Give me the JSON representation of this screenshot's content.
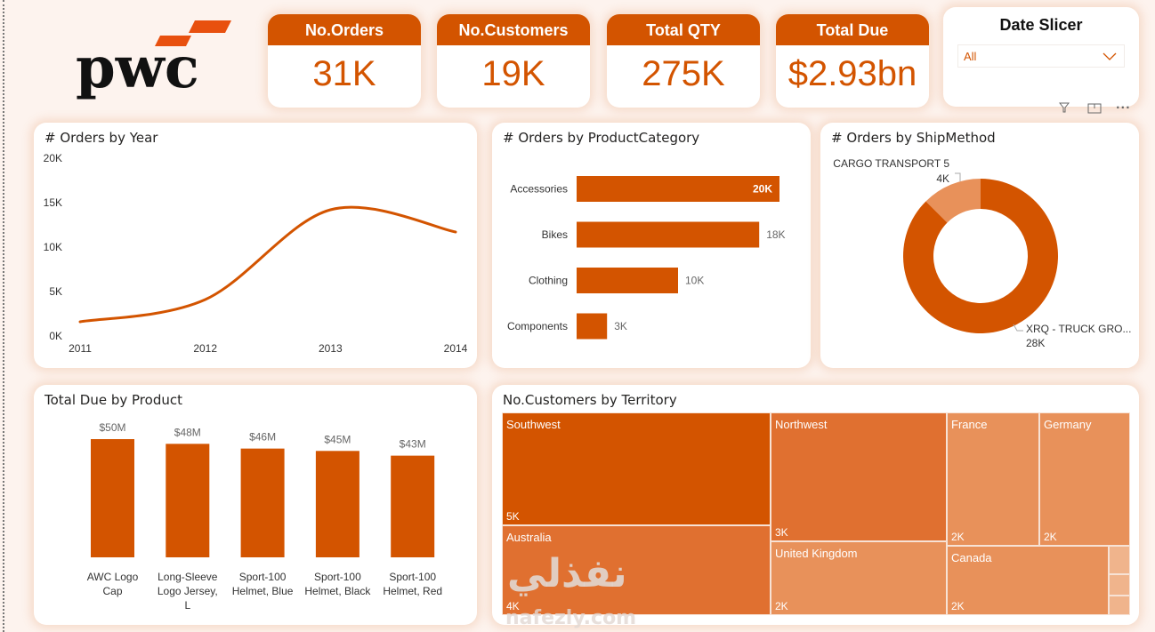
{
  "logo": {
    "text": "pwc"
  },
  "kpis": [
    {
      "label": "No.Orders",
      "value": "31K"
    },
    {
      "label": "No.Customers",
      "value": "19K"
    },
    {
      "label": "Total QTY",
      "value": "275K"
    },
    {
      "label": "Total Due",
      "value": "$2.93bn"
    }
  ],
  "slicer": {
    "title": "Date Slicer",
    "selected": "All"
  },
  "colors": {
    "accent": "#d35400",
    "accent_mid": "#e07030",
    "accent_light": "#e8915a",
    "accent_lighter": "#f0b48c"
  },
  "chart_data": [
    {
      "id": "orders-by-year",
      "type": "line",
      "title": "# Orders by Year",
      "x": [
        "2011",
        "2012",
        "2013",
        "2014"
      ],
      "values": [
        1600,
        4100,
        14200,
        11700
      ],
      "ylim": [
        0,
        20000
      ],
      "yticks": [
        "0K",
        "5K",
        "10K",
        "15K",
        "20K"
      ],
      "xlabel": "",
      "ylabel": "",
      "grid": false
    },
    {
      "id": "orders-by-category",
      "type": "bar",
      "orientation": "horizontal",
      "title": "# Orders by ProductCategory",
      "categories": [
        "Accessories",
        "Bikes",
        "Clothing",
        "Components"
      ],
      "values": [
        20000,
        18000,
        10000,
        3000
      ],
      "labels": [
        "20K",
        "18K",
        "10K",
        "3K"
      ]
    },
    {
      "id": "orders-by-shipmethod",
      "type": "pie",
      "variant": "donut",
      "title": "# Orders by ShipMethod",
      "categories": [
        "CARGO TRANSPORT 5",
        "XRQ - TRUCK GRO..."
      ],
      "values": [
        4000,
        28000
      ],
      "labels": [
        "4K",
        "28K"
      ]
    },
    {
      "id": "totaldue-by-product",
      "type": "bar",
      "orientation": "vertical",
      "title": "Total Due by Product",
      "categories": [
        [
          "AWC Logo",
          "Cap"
        ],
        [
          "Long-Sleeve",
          "Logo Jersey,",
          "L"
        ],
        [
          "Sport-100",
          "Helmet, Blue"
        ],
        [
          "Sport-100",
          "Helmet, Black"
        ],
        [
          "Sport-100",
          "Helmet, Red"
        ]
      ],
      "values": [
        50,
        48,
        46,
        45,
        43
      ],
      "labels": [
        "$50M",
        "$48M",
        "$46M",
        "$45M",
        "$43M"
      ],
      "unit": "$M"
    },
    {
      "id": "customers-by-territory",
      "type": "treemap",
      "title": "No.Customers by Territory",
      "items": [
        {
          "name": "Southwest",
          "label": "5K",
          "value": 5000
        },
        {
          "name": "Australia",
          "label": "4K",
          "value": 4000
        },
        {
          "name": "Northwest",
          "label": "3K",
          "value": 3000
        },
        {
          "name": "United Kingdom",
          "label": "2K",
          "value": 2000
        },
        {
          "name": "France",
          "label": "2K",
          "value": 2000
        },
        {
          "name": "Germany",
          "label": "2K",
          "value": 2000
        },
        {
          "name": "Canada",
          "label": "2K",
          "value": 2000
        },
        {
          "name": "",
          "label": "",
          "value": 300
        },
        {
          "name": "",
          "label": "",
          "value": 250
        },
        {
          "name": "",
          "label": "",
          "value": 200
        }
      ]
    }
  ],
  "watermark": {
    "text": "نفذلي",
    "sub": "nafezly.com"
  }
}
